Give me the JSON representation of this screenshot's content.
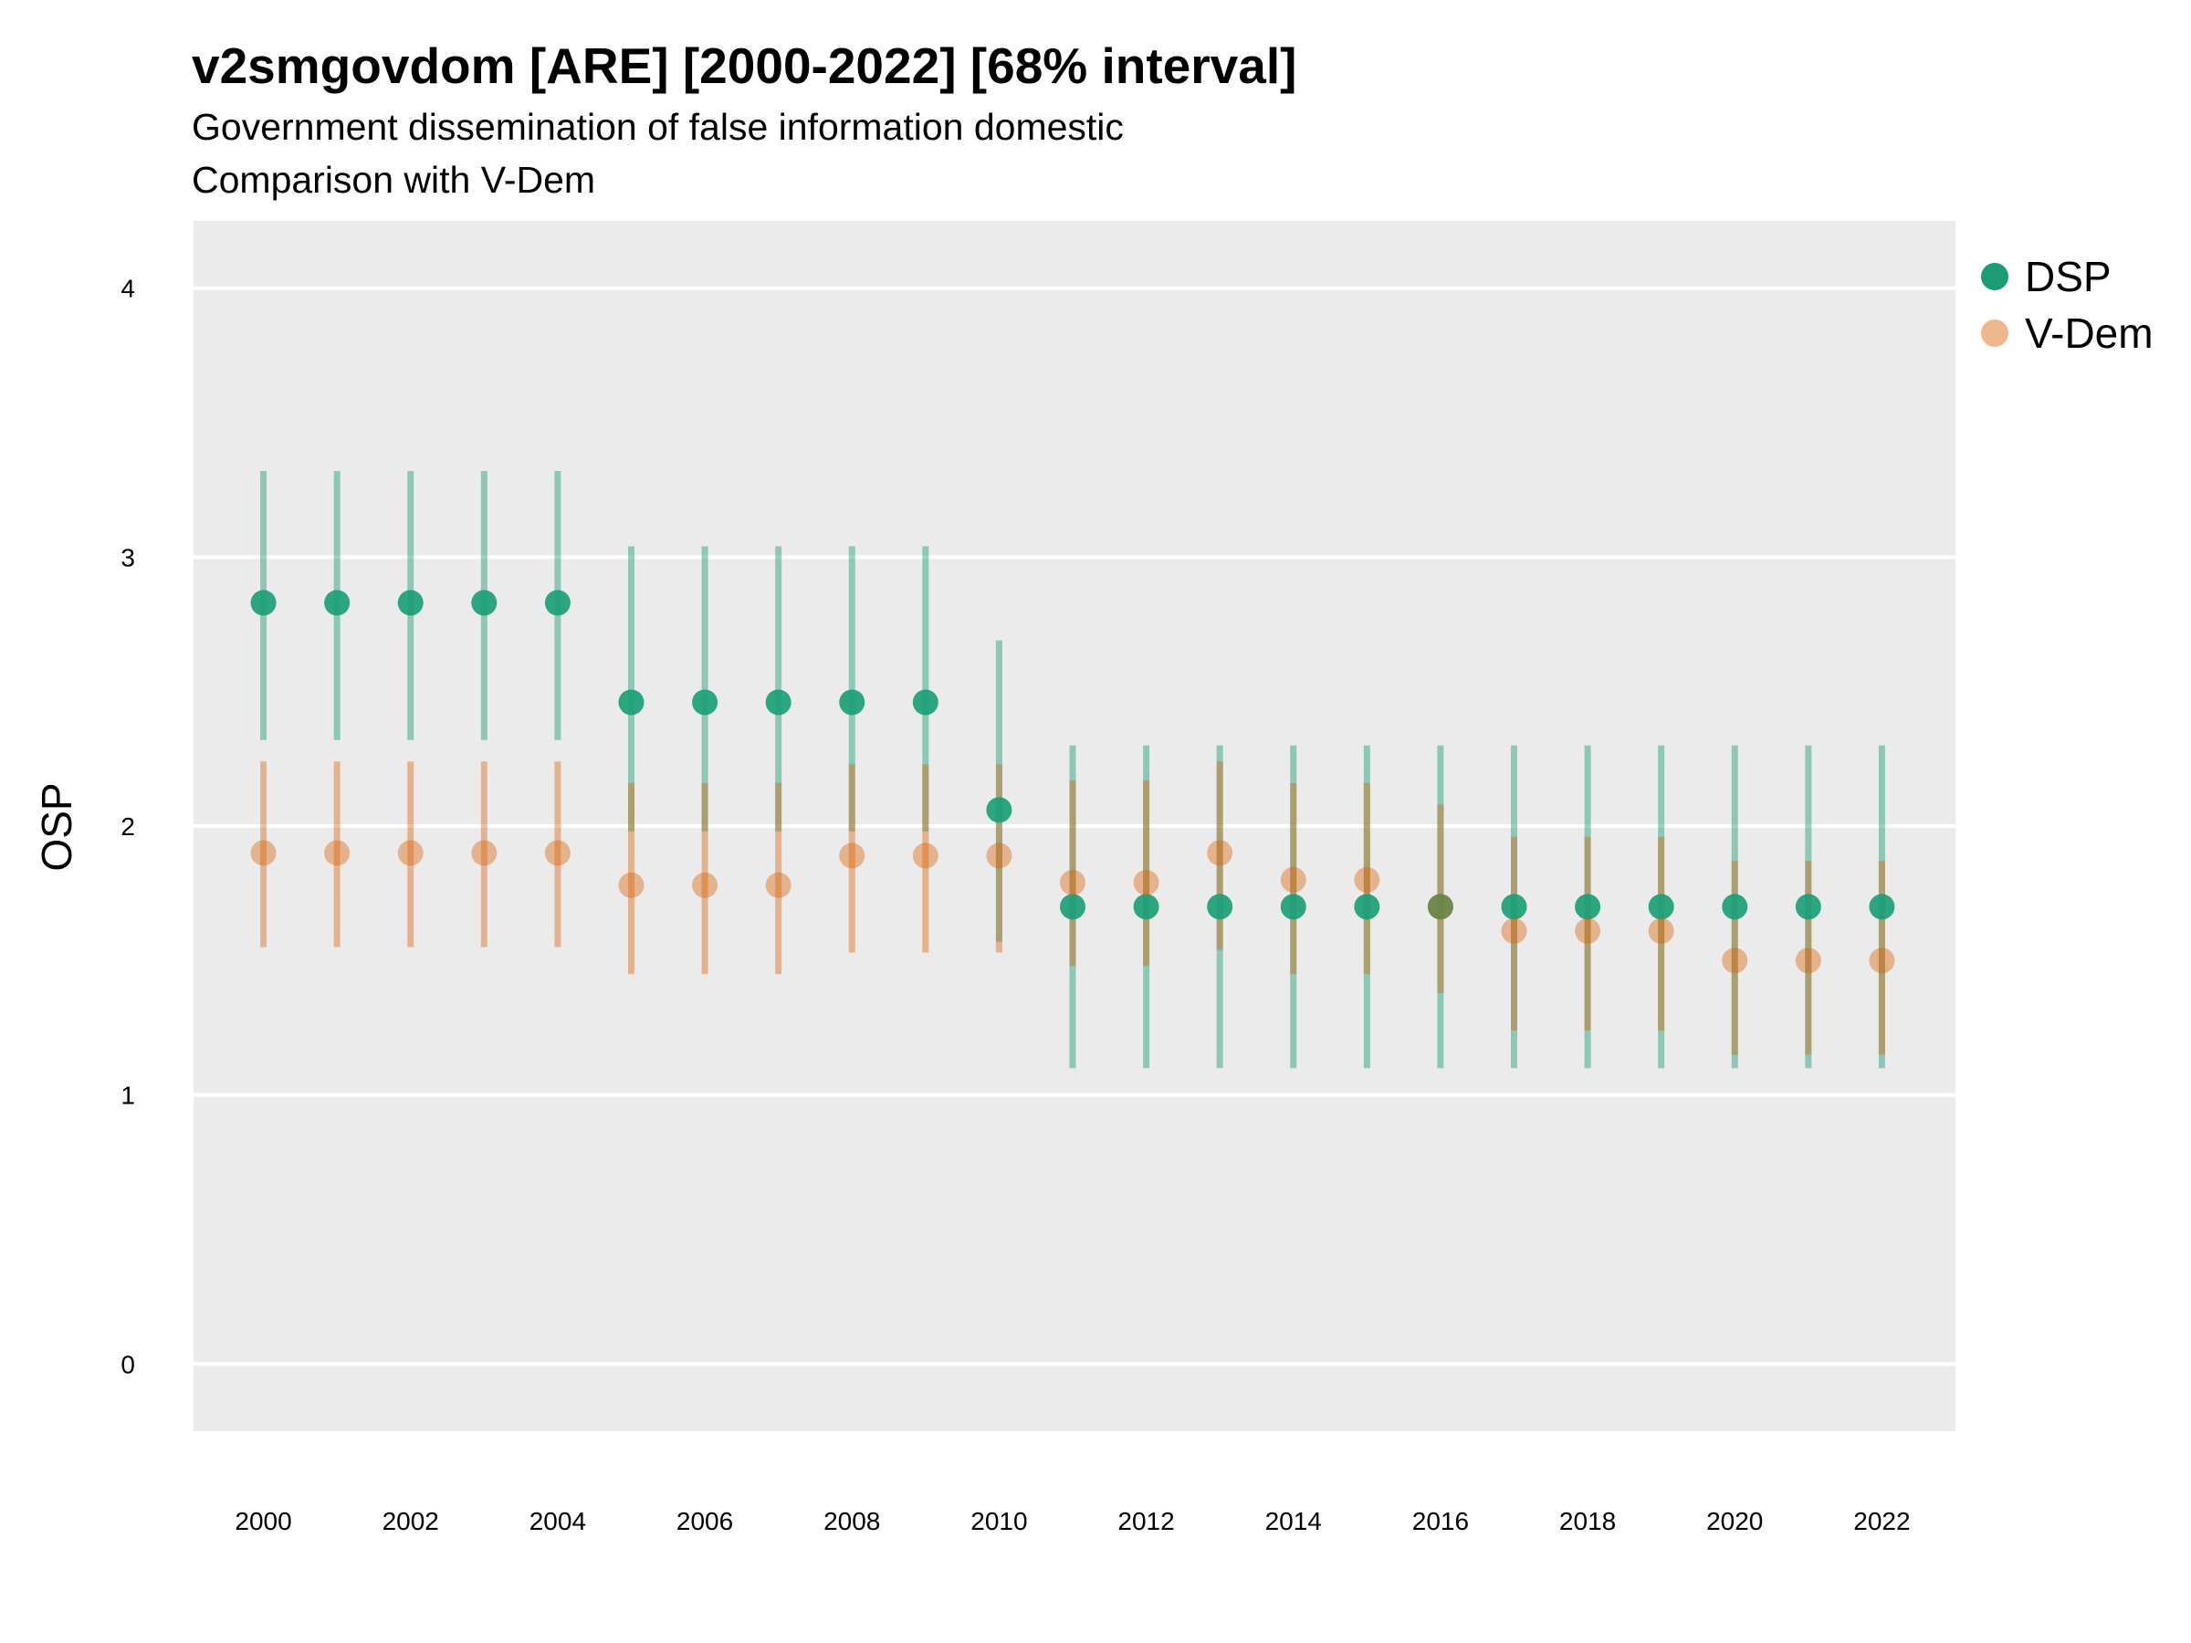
{
  "chart_data": {
    "type": "scatter",
    "title": "v2smgovdom [ARE] [2000-2022] [68% interval]",
    "subtitle_lines": [
      "Government dissemination of false information domestic",
      "Comparison with V-Dem"
    ],
    "xlabel": "",
    "ylabel": "OSP",
    "x": [
      2000,
      2001,
      2002,
      2003,
      2004,
      2005,
      2006,
      2007,
      2008,
      2009,
      2010,
      2011,
      2012,
      2013,
      2014,
      2015,
      2016,
      2017,
      2018,
      2019,
      2020,
      2021,
      2022
    ],
    "x_ticks": [
      "2000",
      "2002",
      "2004",
      "2006",
      "2008",
      "2010",
      "2012",
      "2014",
      "2016",
      "2018",
      "2020",
      "2022"
    ],
    "y_ticks": [
      "0",
      "1",
      "2",
      "3",
      "4"
    ],
    "ylim": [
      -0.25,
      4.25
    ],
    "xlim": [
      1999.05,
      2023.0
    ],
    "grid": true,
    "legend_position": "right",
    "series": [
      {
        "name": "DSP",
        "color": "#1b9e77",
        "values": [
          2.83,
          2.83,
          2.83,
          2.83,
          2.83,
          2.46,
          2.46,
          2.46,
          2.46,
          2.46,
          2.06,
          1.7,
          1.7,
          1.7,
          1.7,
          1.7,
          1.7,
          1.7,
          1.7,
          1.7,
          1.7,
          1.7,
          1.7
        ],
        "lower": [
          2.32,
          2.32,
          2.32,
          2.32,
          2.32,
          1.98,
          1.98,
          1.98,
          1.98,
          1.98,
          1.57,
          1.1,
          1.1,
          1.1,
          1.1,
          1.1,
          1.1,
          1.1,
          1.1,
          1.1,
          1.1,
          1.1,
          1.1
        ],
        "upper": [
          3.32,
          3.32,
          3.32,
          3.32,
          3.32,
          3.04,
          3.04,
          3.04,
          3.04,
          3.04,
          2.69,
          2.3,
          2.3,
          2.3,
          2.3,
          2.3,
          2.3,
          2.3,
          2.3,
          2.3,
          2.3,
          2.3,
          2.3
        ]
      },
      {
        "name": "V-Dem",
        "color": "#d95f02",
        "values": [
          1.9,
          1.9,
          1.9,
          1.9,
          1.9,
          1.78,
          1.78,
          1.78,
          1.89,
          1.89,
          1.89,
          1.79,
          1.79,
          1.9,
          1.8,
          1.8,
          1.7,
          1.61,
          1.61,
          1.61,
          1.5,
          1.5,
          1.5
        ],
        "lower": [
          1.55,
          1.55,
          1.55,
          1.55,
          1.55,
          1.45,
          1.45,
          1.45,
          1.53,
          1.53,
          1.53,
          1.48,
          1.48,
          1.54,
          1.45,
          1.45,
          1.38,
          1.24,
          1.24,
          1.24,
          1.15,
          1.15,
          1.15
        ],
        "upper": [
          2.24,
          2.24,
          2.24,
          2.24,
          2.24,
          2.16,
          2.16,
          2.16,
          2.23,
          2.23,
          2.23,
          2.17,
          2.17,
          2.24,
          2.16,
          2.16,
          2.08,
          1.96,
          1.96,
          1.96,
          1.87,
          1.87,
          1.87
        ]
      }
    ]
  }
}
